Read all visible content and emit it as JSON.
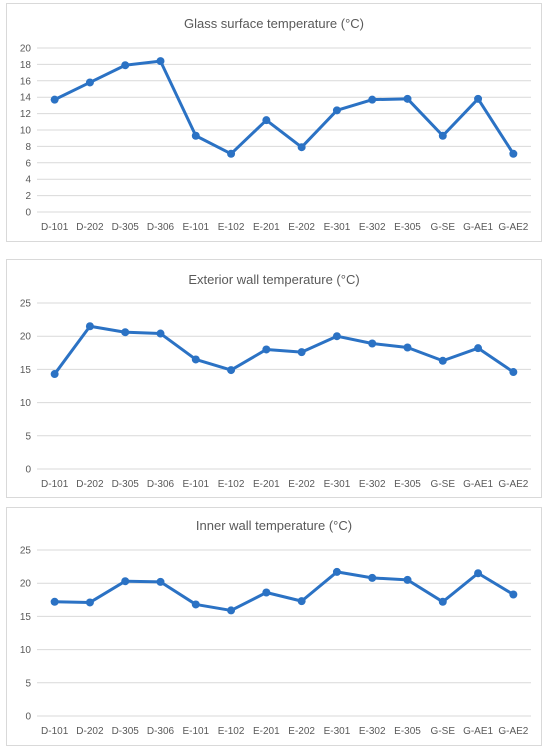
{
  "chart_data": [
    {
      "type": "line",
      "title": "Glass surface temperature (°C)",
      "categories": [
        "D-101",
        "D-202",
        "D-305",
        "D-306",
        "E-101",
        "E-102",
        "E-201",
        "E-202",
        "E-301",
        "E-302",
        "E-305",
        "G-SE",
        "G-AE1",
        "G-AE2"
      ],
      "values": [
        13.7,
        15.8,
        17.9,
        18.4,
        9.3,
        7.1,
        11.2,
        7.9,
        12.4,
        13.7,
        13.8,
        9.3,
        13.8,
        7.1
      ],
      "yticks": [
        0,
        2,
        4,
        6,
        8,
        10,
        12,
        14,
        16,
        18,
        20
      ],
      "ylim": [
        0,
        20
      ],
      "grid": true,
      "color": "#2b72c4"
    },
    {
      "type": "line",
      "title": "Exterior wall temperature (°C)",
      "categories": [
        "D-101",
        "D-202",
        "D-305",
        "D-306",
        "E-101",
        "E-102",
        "E-201",
        "E-202",
        "E-301",
        "E-302",
        "E-305",
        "G-SE",
        "G-AE1",
        "G-AE2"
      ],
      "values": [
        14.3,
        21.5,
        20.6,
        20.4,
        16.5,
        14.9,
        18.0,
        17.6,
        20.0,
        18.9,
        18.3,
        16.3,
        18.2,
        14.6
      ],
      "yticks": [
        0,
        5,
        10,
        15,
        20,
        25
      ],
      "ylim": [
        0,
        25
      ],
      "grid": true,
      "color": "#2b72c4"
    },
    {
      "type": "line",
      "title": "Inner wall temperature (°C)",
      "categories": [
        "D-101",
        "D-202",
        "D-305",
        "D-306",
        "E-101",
        "E-102",
        "E-201",
        "E-202",
        "E-301",
        "E-302",
        "E-305",
        "G-SE",
        "G-AE1",
        "G-AE2"
      ],
      "values": [
        17.2,
        17.1,
        20.3,
        20.2,
        16.8,
        15.9,
        18.6,
        17.3,
        21.7,
        20.8,
        20.5,
        17.2,
        21.5,
        18.3
      ],
      "yticks": [
        0,
        5,
        10,
        15,
        20,
        25
      ],
      "ylim": [
        0,
        25
      ],
      "grid": true,
      "color": "#2b72c4"
    }
  ]
}
